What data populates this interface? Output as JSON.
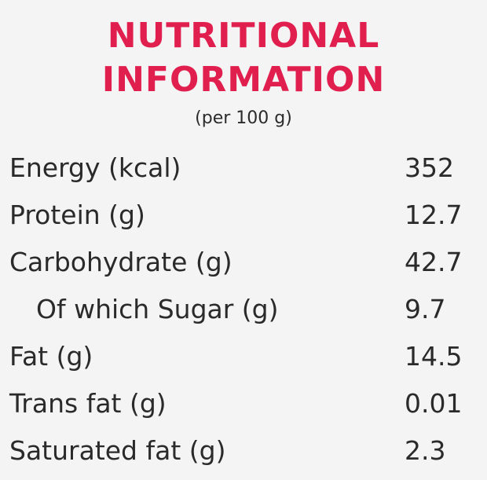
{
  "title": {
    "line1": "NUTRITIONAL",
    "line2": "INFORMATION",
    "color": "#e11f4f"
  },
  "subtitle": "(per 100 g)",
  "rows": [
    {
      "label": "Energy (kcal)",
      "value": "352"
    },
    {
      "label": "Protein (g)",
      "value": "12.7"
    },
    {
      "label": "Carbohydrate (g)",
      "value": "42.7"
    },
    {
      "label": "Of which Sugar (g)",
      "value": "9.7"
    },
    {
      "label": "Fat (g)",
      "value": "14.5"
    },
    {
      "label": "Trans fat (g)",
      "value": "0.01"
    },
    {
      "label": "Saturated fat (g)",
      "value": "2.3"
    }
  ]
}
